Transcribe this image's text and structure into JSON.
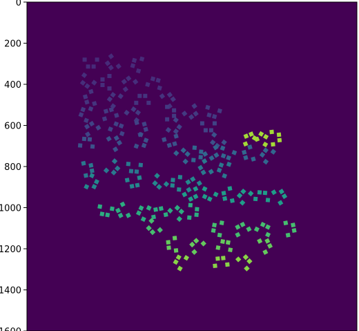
{
  "chart_data": {
    "type": "heatmap",
    "title": "",
    "xlabel": "",
    "ylabel": "",
    "colormap": "viridis",
    "background_color": "#440154",
    "ylim": [
      1600,
      0
    ],
    "y_ticks": [
      0,
      200,
      400,
      600,
      800,
      1000,
      1200,
      1400,
      1600
    ],
    "y_tick_labels": [
      "0",
      "200",
      "400",
      "600",
      "800",
      "1000",
      "1200",
      "1400",
      "1600"
    ],
    "grid": false,
    "legend": "none",
    "blob_rows": [
      {
        "row": 300,
        "xs": [
          310,
          410,
          530
        ],
        "level": 0.12
      },
      {
        "row": 390,
        "xs": [
          290,
          380,
          490,
          620
        ],
        "level": 0.13
      },
      {
        "row": 470,
        "xs": [
          300,
          420,
          560,
          690
        ],
        "level": 0.15
      },
      {
        "row": 540,
        "xs": [
          280,
          400,
          520,
          700,
          800,
          900
        ],
        "level": 0.17
      },
      {
        "row": 610,
        "xs": [
          310,
          440,
          560,
          720,
          880
        ],
        "level": 0.2
      },
      {
        "row": 680,
        "xs": [
          290,
          430,
          560,
          700,
          920
        ],
        "level": 0.25
      },
      {
        "row": 740,
        "xs": [
          760,
          830,
          900,
          970,
          1070,
          1160
        ],
        "level": 0.33
      },
      {
        "row": 810,
        "xs": [
          300,
          420,
          520,
          860,
          950
        ],
        "level": 0.4
      },
      {
        "row": 880,
        "xs": [
          320,
          520,
          640,
          720,
          800
        ],
        "level": 0.47
      },
      {
        "row": 940,
        "xs": [
          800,
          880,
          970,
          1050,
          1140,
          1230
        ],
        "level": 0.55
      },
      {
        "row": 1020,
        "xs": [
          380,
          460,
          560,
          640,
          730,
          810
        ],
        "level": 0.62
      },
      {
        "row": 1100,
        "xs": [
          610,
          920,
          1040,
          1150,
          1280
        ],
        "level": 0.7
      },
      {
        "row": 1180,
        "xs": [
          700,
          820,
          960,
          1160
        ],
        "level": 0.76
      },
      {
        "row": 1260,
        "xs": [
          740,
          940,
          1060
        ],
        "level": 0.82
      },
      {
        "row": 660,
        "xs": [
          1080,
          1140,
          1210
        ],
        "level": 0.86
      }
    ]
  }
}
